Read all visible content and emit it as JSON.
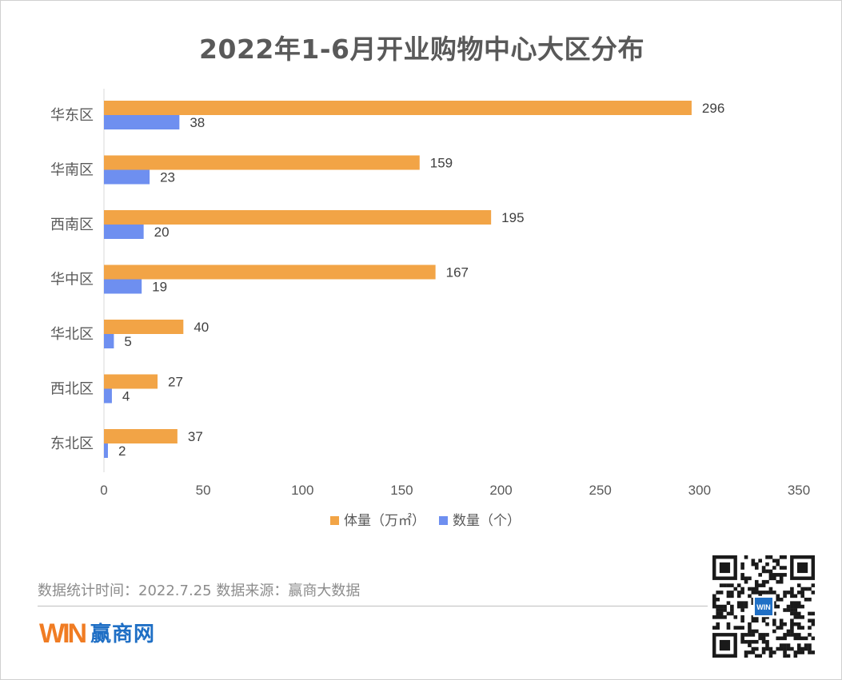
{
  "chart_data": {
    "type": "bar",
    "orientation": "horizontal",
    "title": "2022年1-6月开业购物中心大区分布",
    "categories": [
      "华东区",
      "华南区",
      "西南区",
      "华中区",
      "华北区",
      "西北区",
      "东北区"
    ],
    "series": [
      {
        "name": "体量（万㎡）",
        "color": "#f2a446",
        "values": [
          296,
          159,
          195,
          167,
          40,
          27,
          37
        ]
      },
      {
        "name": "数量（个）",
        "color": "#6e8ff0",
        "values": [
          38,
          23,
          20,
          19,
          5,
          4,
          2
        ]
      }
    ],
    "xlim": [
      0,
      350
    ],
    "xticks": [
      0,
      50,
      100,
      150,
      200,
      250,
      300,
      350
    ],
    "grid": false,
    "legend_position": "bottom",
    "data_labels": true
  },
  "footer": {
    "note": "数据统计时间：2022.7.25  数据来源：赢商大数据",
    "brand_name": "赢商网",
    "brand_mark": "WIN",
    "qr_badge": "WIN"
  },
  "colors": {
    "brand": "#1f6fc5",
    "brand_orange": "#f07c23"
  }
}
